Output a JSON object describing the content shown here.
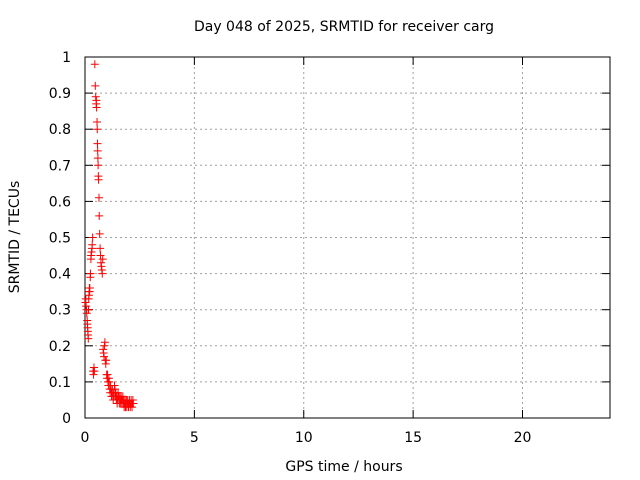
{
  "chart_data": {
    "type": "scatter",
    "title": "Day 048 of 2025, SRMTID for receiver carg",
    "xlabel": "GPS time / hours",
    "ylabel": "SRMTID / TECUs",
    "xlim": [
      0,
      24
    ],
    "ylim": [
      0,
      1
    ],
    "x_ticks": [
      0,
      5,
      10,
      15,
      20
    ],
    "y_ticks": [
      0,
      0.1,
      0.2,
      0.3,
      0.4,
      0.5,
      0.6,
      0.7,
      0.8,
      0.9,
      1
    ],
    "x_tick_labels": [
      "0",
      "5",
      "10",
      "15",
      "20"
    ],
    "y_tick_labels": [
      "0",
      "0.1",
      "0.2",
      "0.3",
      "0.4",
      "0.5",
      "0.6",
      "0.7",
      "0.8",
      "0.9",
      "1"
    ],
    "grid": true,
    "marker": "+",
    "color": "#ff0000",
    "series": [
      {
        "name": "SRMTID",
        "points": [
          [
            0.02,
            0.32
          ],
          [
            0.04,
            0.33
          ],
          [
            0.05,
            0.31
          ],
          [
            0.07,
            0.3
          ],
          [
            0.08,
            0.29
          ],
          [
            0.1,
            0.27
          ],
          [
            0.11,
            0.26
          ],
          [
            0.12,
            0.25
          ],
          [
            0.13,
            0.24
          ],
          [
            0.14,
            0.23
          ],
          [
            0.15,
            0.22
          ],
          [
            0.16,
            0.3
          ],
          [
            0.17,
            0.33
          ],
          [
            0.18,
            0.34
          ],
          [
            0.19,
            0.35
          ],
          [
            0.2,
            0.36
          ],
          [
            0.21,
            0.35
          ],
          [
            0.22,
            0.36
          ],
          [
            0.24,
            0.39
          ],
          [
            0.25,
            0.4
          ],
          [
            0.27,
            0.44
          ],
          [
            0.28,
            0.45
          ],
          [
            0.3,
            0.46
          ],
          [
            0.32,
            0.47
          ],
          [
            0.33,
            0.48
          ],
          [
            0.35,
            0.5
          ],
          [
            0.37,
            0.13
          ],
          [
            0.39,
            0.12
          ],
          [
            0.41,
            0.14
          ],
          [
            0.43,
            0.13
          ],
          [
            0.45,
            0.98
          ],
          [
            0.47,
            0.92
          ],
          [
            0.49,
            0.89
          ],
          [
            0.51,
            0.87
          ],
          [
            0.52,
            0.88
          ],
          [
            0.53,
            0.86
          ],
          [
            0.55,
            0.82
          ],
          [
            0.56,
            0.8
          ],
          [
            0.57,
            0.76
          ],
          [
            0.58,
            0.74
          ],
          [
            0.59,
            0.72
          ],
          [
            0.6,
            0.7
          ],
          [
            0.61,
            0.67
          ],
          [
            0.62,
            0.66
          ],
          [
            0.64,
            0.61
          ],
          [
            0.65,
            0.56
          ],
          [
            0.67,
            0.51
          ],
          [
            0.69,
            0.47
          ],
          [
            0.71,
            0.45
          ],
          [
            0.73,
            0.43
          ],
          [
            0.75,
            0.42
          ],
          [
            0.77,
            0.41
          ],
          [
            0.79,
            0.4
          ],
          [
            0.81,
            0.44
          ],
          [
            0.83,
            0.19
          ],
          [
            0.85,
            0.18
          ],
          [
            0.87,
            0.17
          ],
          [
            0.89,
            0.2
          ],
          [
            0.91,
            0.21
          ],
          [
            0.93,
            0.16
          ],
          [
            0.95,
            0.15
          ],
          [
            0.97,
            0.16
          ],
          [
            0.99,
            0.12
          ],
          [
            1.01,
            0.11
          ],
          [
            1.03,
            0.12
          ],
          [
            1.05,
            0.1
          ],
          [
            1.07,
            0.09
          ],
          [
            1.09,
            0.11
          ],
          [
            1.11,
            0.1
          ],
          [
            1.13,
            0.08
          ],
          [
            1.15,
            0.07
          ],
          [
            1.17,
            0.09
          ],
          [
            1.19,
            0.08
          ],
          [
            1.21,
            0.06
          ],
          [
            1.23,
            0.07
          ],
          [
            1.25,
            0.08
          ],
          [
            1.27,
            0.06
          ],
          [
            1.29,
            0.05
          ],
          [
            1.31,
            0.07
          ],
          [
            1.33,
            0.06
          ],
          [
            1.35,
            0.09
          ],
          [
            1.37,
            0.08
          ],
          [
            1.39,
            0.06
          ],
          [
            1.41,
            0.07
          ],
          [
            1.43,
            0.05
          ],
          [
            1.45,
            0.06
          ],
          [
            1.47,
            0.04
          ],
          [
            1.49,
            0.05
          ],
          [
            1.51,
            0.07
          ],
          [
            1.53,
            0.06
          ],
          [
            1.55,
            0.05
          ],
          [
            1.57,
            0.04
          ],
          [
            1.59,
            0.06
          ],
          [
            1.61,
            0.05
          ],
          [
            1.63,
            0.04
          ],
          [
            1.65,
            0.06
          ],
          [
            1.67,
            0.05
          ],
          [
            1.69,
            0.04
          ],
          [
            1.71,
            0.05
          ],
          [
            1.73,
            0.06
          ],
          [
            1.75,
            0.04
          ],
          [
            1.77,
            0.05
          ],
          [
            1.79,
            0.03
          ],
          [
            1.81,
            0.04
          ],
          [
            1.83,
            0.05
          ],
          [
            1.85,
            0.03
          ],
          [
            1.87,
            0.04
          ],
          [
            1.89,
            0.05
          ],
          [
            1.91,
            0.03
          ],
          [
            1.93,
            0.04
          ],
          [
            1.95,
            0.05
          ],
          [
            1.97,
            0.04
          ],
          [
            1.99,
            0.03
          ],
          [
            2.01,
            0.04
          ],
          [
            2.03,
            0.05
          ],
          [
            2.05,
            0.04
          ],
          [
            2.07,
            0.03
          ],
          [
            2.09,
            0.04
          ],
          [
            2.11,
            0.05
          ],
          [
            2.13,
            0.04
          ],
          [
            2.15,
            0.03
          ],
          [
            2.17,
            0.04
          ],
          [
            2.19,
            0.05
          ],
          [
            2.21,
            0.04
          ]
        ]
      }
    ]
  }
}
